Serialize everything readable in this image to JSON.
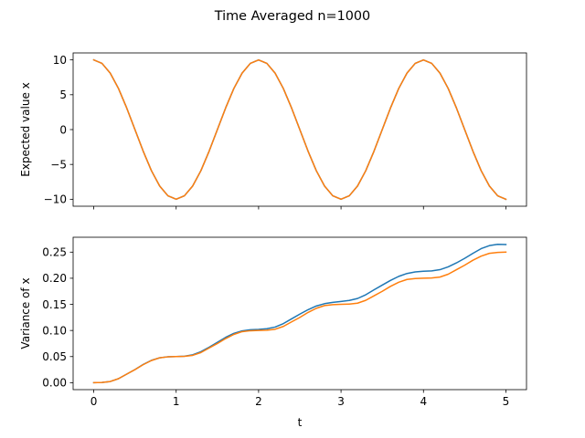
{
  "figure": {
    "title": "Time Averaged n=1000"
  },
  "chart_data": [
    {
      "type": "line",
      "title": "",
      "xlabel": "",
      "ylabel": "Expected value x",
      "xlim": [
        -0.25,
        5.25
      ],
      "ylim": [
        -11,
        11
      ],
      "x_ticks": [
        0,
        1,
        2,
        3,
        4,
        5
      ],
      "x_tick_labels_visible": false,
      "y_ticks": [
        -10,
        -5,
        0,
        5,
        10
      ],
      "y_tick_labels": [
        "−10",
        "−5",
        "0",
        "5",
        "10"
      ],
      "grid": false,
      "series": [
        {
          "color": "#1f77b4",
          "x": [
            0,
            0.1,
            0.2,
            0.3,
            0.4,
            0.5,
            0.6,
            0.7,
            0.8,
            0.9,
            1.0,
            1.1,
            1.2,
            1.3,
            1.4,
            1.5,
            1.6,
            1.7,
            1.8,
            1.9,
            2.0,
            2.1,
            2.2,
            2.3,
            2.4,
            2.5,
            2.6,
            2.7,
            2.8,
            2.9,
            3.0,
            3.1,
            3.2,
            3.3,
            3.4,
            3.5,
            3.6,
            3.7,
            3.8,
            3.9,
            4.0,
            4.1,
            4.2,
            4.3,
            4.4,
            4.5,
            4.6,
            4.7,
            4.8,
            4.9,
            5.0
          ],
          "y": [
            10,
            9.5,
            8.1,
            5.9,
            3.1,
            0,
            -3.1,
            -5.9,
            -8.1,
            -9.5,
            -10,
            -9.5,
            -8.1,
            -5.9,
            -3.1,
            0,
            3.1,
            5.9,
            8.1,
            9.5,
            10,
            9.5,
            8.1,
            5.9,
            3.1,
            0,
            -3.1,
            -5.9,
            -8.1,
            -9.5,
            -10,
            -9.5,
            -8.1,
            -5.9,
            -3.1,
            0,
            3.1,
            5.9,
            8.1,
            9.5,
            10,
            9.5,
            8.1,
            5.9,
            3.1,
            0,
            -3.1,
            -5.9,
            -8.1,
            -9.5,
            -10
          ]
        },
        {
          "color": "#ff7f0e",
          "x": [
            0,
            0.1,
            0.2,
            0.3,
            0.4,
            0.5,
            0.6,
            0.7,
            0.8,
            0.9,
            1.0,
            1.1,
            1.2,
            1.3,
            1.4,
            1.5,
            1.6,
            1.7,
            1.8,
            1.9,
            2.0,
            2.1,
            2.2,
            2.3,
            2.4,
            2.5,
            2.6,
            2.7,
            2.8,
            2.9,
            3.0,
            3.1,
            3.2,
            3.3,
            3.4,
            3.5,
            3.6,
            3.7,
            3.8,
            3.9,
            4.0,
            4.1,
            4.2,
            4.3,
            4.4,
            4.5,
            4.6,
            4.7,
            4.8,
            4.9,
            5.0
          ],
          "y": [
            10,
            9.5,
            8.1,
            5.9,
            3.1,
            0,
            -3.1,
            -5.9,
            -8.1,
            -9.5,
            -10,
            -9.5,
            -8.1,
            -5.9,
            -3.1,
            0,
            3.1,
            5.9,
            8.1,
            9.5,
            10,
            9.5,
            8.1,
            5.9,
            3.1,
            0,
            -3.1,
            -5.9,
            -8.1,
            -9.5,
            -10,
            -9.5,
            -8.1,
            -5.9,
            -3.1,
            0,
            3.1,
            5.9,
            8.1,
            9.5,
            10,
            9.5,
            8.1,
            5.9,
            3.1,
            0,
            -3.1,
            -5.9,
            -8.1,
            -9.5,
            -10
          ]
        }
      ]
    },
    {
      "type": "line",
      "title": "",
      "xlabel": "t",
      "ylabel": "Variance of x",
      "xlim": [
        -0.25,
        5.25
      ],
      "ylim": [
        -0.0133,
        0.2785
      ],
      "x_ticks": [
        0,
        1,
        2,
        3,
        4,
        5
      ],
      "x_tick_labels": [
        "0",
        "1",
        "2",
        "3",
        "4",
        "5"
      ],
      "y_ticks": [
        0,
        0.05,
        0.1,
        0.15,
        0.2,
        0.25
      ],
      "y_tick_labels": [
        "0.00",
        "0.05",
        "0.10",
        "0.15",
        "0.20",
        "0.25"
      ],
      "grid": false,
      "series": [
        {
          "color": "#1f77b4",
          "x": [
            0,
            0.1,
            0.2,
            0.3,
            0.4,
            0.5,
            0.6,
            0.7,
            0.8,
            0.9,
            1.0,
            1.1,
            1.2,
            1.3,
            1.4,
            1.5,
            1.6,
            1.7,
            1.8,
            1.9,
            2.0,
            2.1,
            2.2,
            2.3,
            2.4,
            2.5,
            2.6,
            2.7,
            2.8,
            2.9,
            3.0,
            3.1,
            3.2,
            3.3,
            3.4,
            3.5,
            3.6,
            3.7,
            3.8,
            3.9,
            4.0,
            4.1,
            4.2,
            4.3,
            4.4,
            4.5,
            4.6,
            4.7,
            4.8,
            4.9,
            5.0
          ],
          "y": [
            0,
            0.0005,
            0.0023,
            0.0077,
            0.0164,
            0.0252,
            0.0349,
            0.0428,
            0.0476,
            0.0497,
            0.0501,
            0.0507,
            0.0534,
            0.0593,
            0.068,
            0.0774,
            0.0868,
            0.0945,
            0.0992,
            0.1014,
            0.1021,
            0.1033,
            0.1065,
            0.1131,
            0.1222,
            0.1313,
            0.1398,
            0.1468,
            0.1513,
            0.1537,
            0.1555,
            0.1575,
            0.1612,
            0.1684,
            0.1778,
            0.1869,
            0.1958,
            0.2036,
            0.2091,
            0.2121,
            0.2133,
            0.214,
            0.2164,
            0.2218,
            0.2294,
            0.2381,
            0.2477,
            0.2567,
            0.2625,
            0.265,
            0.2645
          ]
        },
        {
          "color": "#ff7f0e",
          "x": [
            0,
            0.1,
            0.2,
            0.3,
            0.4,
            0.5,
            0.6,
            0.7,
            0.8,
            0.9,
            1.0,
            1.1,
            1.2,
            1.3,
            1.4,
            1.5,
            1.6,
            1.7,
            1.8,
            1.9,
            2.0,
            2.1,
            2.2,
            2.3,
            2.4,
            2.5,
            2.6,
            2.7,
            2.8,
            2.9,
            3.0,
            3.1,
            3.2,
            3.3,
            3.4,
            3.5,
            3.6,
            3.7,
            3.8,
            3.9,
            4.0,
            4.1,
            4.2,
            4.3,
            4.4,
            4.5,
            4.6,
            4.7,
            4.8,
            4.9,
            5.0
          ],
          "y": [
            0,
            0.0005,
            0.0023,
            0.0077,
            0.0164,
            0.025,
            0.0345,
            0.0424,
            0.0477,
            0.0495,
            0.05,
            0.0505,
            0.0523,
            0.0577,
            0.0664,
            0.075,
            0.0845,
            0.0924,
            0.0977,
            0.0995,
            0.1,
            0.1005,
            0.1023,
            0.1077,
            0.1164,
            0.125,
            0.1345,
            0.1424,
            0.1477,
            0.1495,
            0.15,
            0.1505,
            0.1523,
            0.1577,
            0.1664,
            0.175,
            0.1845,
            0.1924,
            0.1977,
            0.1995,
            0.2,
            0.2005,
            0.2023,
            0.2077,
            0.2164,
            0.225,
            0.2345,
            0.2424,
            0.2477,
            0.2495,
            0.25
          ]
        }
      ]
    }
  ]
}
